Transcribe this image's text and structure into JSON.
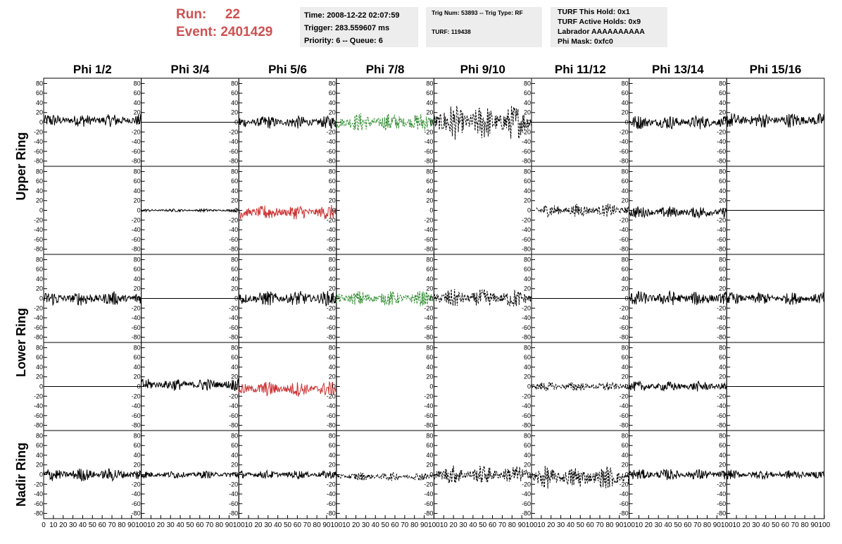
{
  "header": {
    "run_label": "Run:",
    "run_value": "22",
    "event_label": "Event:",
    "event_value": "2401429",
    "time": "Time: 2008-12-22 02:07:59",
    "trigger": "Trigger: 283.559607 ms",
    "priority": "Priority: 6 -- Queue: 6",
    "trig_num": "Trig Num: 53893 -- Trig Type: RF",
    "turf": "TURF: 119438",
    "turf_hold": "TURF This Hold: 0x1",
    "turf_active": "TURF Active Holds: 0x9",
    "labrador": "Labrador AAAAAAAAAA",
    "phi_mask": "Phi Mask: 0xfc0"
  },
  "chart_data": {
    "type": "line",
    "columns": [
      "Phi 1/2",
      "Phi 3/4",
      "Phi 5/6",
      "Phi 7/8",
      "Phi 9/10",
      "Phi 11/12",
      "Phi 13/14",
      "Phi 15/16"
    ],
    "row_groups": [
      {
        "label": "Upper Ring",
        "rows": [
          0,
          1
        ]
      },
      {
        "label": "Lower Ring",
        "rows": [
          2,
          3
        ]
      },
      {
        "label": "Nadir Ring",
        "rows": [
          4
        ]
      }
    ],
    "xlim": [
      0,
      100
    ],
    "ylim": [
      -85,
      85
    ],
    "y_ticks": [
      -80,
      -60,
      -40,
      -20,
      0,
      20,
      40,
      60,
      80
    ],
    "x_ticks": [
      0,
      10,
      20,
      30,
      40,
      50,
      60,
      70,
      80,
      90,
      100
    ],
    "colors": {
      "black": "#000000",
      "green": "#2e8b2e",
      "red": "#cc3333"
    },
    "panels": [
      [
        {
          "color": "black",
          "style": "solid",
          "amp": 14,
          "start": 0,
          "end": 100,
          "offset": 4
        },
        {
          "color": "black",
          "style": "solid",
          "amp": 0,
          "start": 0,
          "end": 100,
          "offset": 0
        },
        {
          "color": "black",
          "style": "solid",
          "amp": 14,
          "start": 0,
          "end": 100,
          "offset": 0
        },
        {
          "color": "green",
          "style": "dashed",
          "amp": 20,
          "start": 0,
          "end": 100,
          "offset": 0
        },
        {
          "color": "black",
          "style": "dashed",
          "amp": 38,
          "start": 0,
          "end": 100,
          "offset": 0
        },
        {
          "color": "black",
          "style": "solid",
          "amp": 0,
          "start": 0,
          "end": 100,
          "offset": 0
        },
        {
          "color": "black",
          "style": "solid",
          "amp": 15,
          "start": 0,
          "end": 100,
          "offset": 0
        },
        {
          "color": "black",
          "style": "solid",
          "amp": 16,
          "start": 0,
          "end": 100,
          "offset": 4
        }
      ],
      [
        {
          "color": "black",
          "style": "none",
          "amp": 0,
          "start": 0,
          "end": 100,
          "offset": 0
        },
        {
          "color": "black",
          "style": "solid",
          "amp": 3,
          "start": 0,
          "end": 100,
          "offset": 0
        },
        {
          "color": "red",
          "style": "solid",
          "amp": 16,
          "start": 0,
          "end": 100,
          "offset": -4
        },
        {
          "color": "black",
          "style": "none",
          "amp": 0,
          "start": 0,
          "end": 100,
          "offset": 0
        },
        {
          "color": "black",
          "style": "none",
          "amp": 0,
          "start": 0,
          "end": 100,
          "offset": 0
        },
        {
          "color": "black",
          "style": "dashed",
          "amp": 14,
          "start": 5,
          "end": 100,
          "offset": 0
        },
        {
          "color": "black",
          "style": "solid",
          "amp": 13,
          "start": 0,
          "end": 100,
          "offset": -4
        },
        {
          "color": "black",
          "style": "solid",
          "amp": 0,
          "start": 0,
          "end": 100,
          "offset": 0
        }
      ],
      [
        {
          "color": "black",
          "style": "solid",
          "amp": 15,
          "start": 0,
          "end": 100,
          "offset": 0
        },
        {
          "color": "black",
          "style": "solid",
          "amp": 0,
          "start": 0,
          "end": 100,
          "offset": 0
        },
        {
          "color": "black",
          "style": "solid",
          "amp": 16,
          "start": 0,
          "end": 100,
          "offset": 0
        },
        {
          "color": "green",
          "style": "dashed",
          "amp": 16,
          "start": 0,
          "end": 100,
          "offset": 0
        },
        {
          "color": "black",
          "style": "dashed",
          "amp": 20,
          "start": 0,
          "end": 100,
          "offset": 0
        },
        {
          "color": "black",
          "style": "solid",
          "amp": 0,
          "start": 0,
          "end": 100,
          "offset": 0
        },
        {
          "color": "black",
          "style": "solid",
          "amp": 16,
          "start": 0,
          "end": 100,
          "offset": 0
        },
        {
          "color": "black",
          "style": "solid",
          "amp": 13,
          "start": 0,
          "end": 100,
          "offset": 0
        }
      ],
      [
        {
          "color": "black",
          "style": "solid",
          "amp": 0,
          "start": 0,
          "end": 100,
          "offset": 0
        },
        {
          "color": "black",
          "style": "solid",
          "amp": 13,
          "start": 0,
          "end": 100,
          "offset": 4
        },
        {
          "color": "red",
          "style": "solid",
          "amp": 16,
          "start": 0,
          "end": 100,
          "offset": -5
        },
        {
          "color": "black",
          "style": "none",
          "amp": 0,
          "start": 0,
          "end": 100,
          "offset": 0
        },
        {
          "color": "black",
          "style": "none",
          "amp": 0,
          "start": 0,
          "end": 100,
          "offset": 0
        },
        {
          "color": "black",
          "style": "dashed",
          "amp": 10,
          "start": 0,
          "end": 100,
          "offset": 0
        },
        {
          "color": "black",
          "style": "solid",
          "amp": 11,
          "start": 0,
          "end": 100,
          "offset": 0
        },
        {
          "color": "black",
          "style": "solid",
          "amp": 0,
          "start": 0,
          "end": 100,
          "offset": 0
        }
      ],
      [
        {
          "color": "black",
          "style": "solid",
          "amp": 14,
          "start": 0,
          "end": 100,
          "offset": 0
        },
        {
          "color": "black",
          "style": "solid",
          "amp": 8,
          "start": 0,
          "end": 100,
          "offset": 0
        },
        {
          "color": "black",
          "style": "solid",
          "amp": 9,
          "start": 0,
          "end": 100,
          "offset": 0
        },
        {
          "color": "black",
          "style": "dashed",
          "amp": 9,
          "start": 0,
          "end": 100,
          "offset": -4
        },
        {
          "color": "black",
          "style": "dashed",
          "amp": 20,
          "start": 0,
          "end": 100,
          "offset": 0
        },
        {
          "color": "black",
          "style": "dashed",
          "amp": 24,
          "start": 0,
          "end": 100,
          "offset": -6
        },
        {
          "color": "black",
          "style": "solid",
          "amp": 12,
          "start": 0,
          "end": 100,
          "offset": 0
        },
        {
          "color": "black",
          "style": "solid",
          "amp": 10,
          "start": 0,
          "end": 100,
          "offset": 0
        }
      ]
    ]
  }
}
